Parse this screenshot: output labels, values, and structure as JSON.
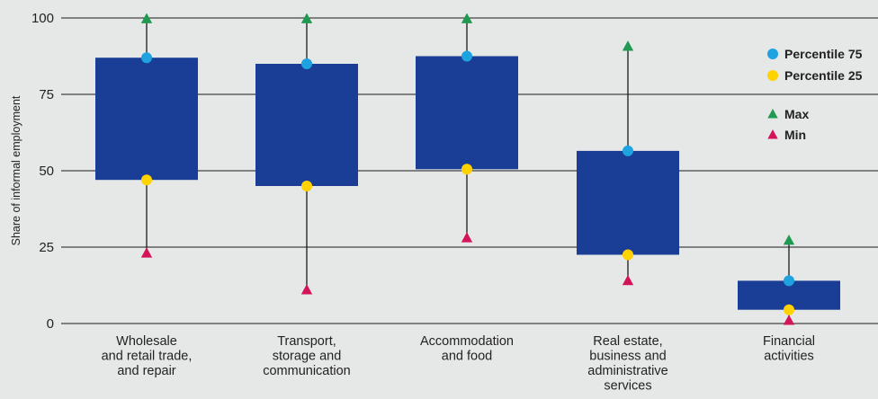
{
  "chart_data": {
    "type": "box",
    "ylabel": "Share of informal employment",
    "ylim": [
      0,
      100
    ],
    "yticks": [
      0,
      25,
      50,
      75,
      100
    ],
    "grid": true,
    "legend_position": "top-right",
    "categories": [
      [
        "Wholesale",
        "and retail trade,",
        "and repair"
      ],
      [
        "Transport,",
        "storage and",
        "communication"
      ],
      [
        "Accommodation",
        "and food"
      ],
      [
        "Real estate,",
        "business and",
        "administrative",
        "services"
      ],
      [
        "Financial",
        "activities"
      ]
    ],
    "series": [
      {
        "name": "Percentile 75",
        "values": [
          87,
          85,
          87.5,
          56.5,
          14
        ]
      },
      {
        "name": "Percentile 25",
        "values": [
          47,
          45,
          50.5,
          22.5,
          4.5
        ]
      },
      {
        "name": "Max",
        "values": [
          100,
          100,
          100,
          91,
          27.5
        ]
      },
      {
        "name": "Min",
        "values": [
          23,
          11,
          28,
          14,
          1
        ]
      }
    ],
    "colors": {
      "box": "#1a3e96",
      "p75": "#1fa3e0",
      "p25": "#ffd200",
      "max": "#1f9a50",
      "min": "#d4145a",
      "grid": "#1a1a1a",
      "whisker": "#1a1a1a",
      "background": "#e6e8e7"
    }
  }
}
